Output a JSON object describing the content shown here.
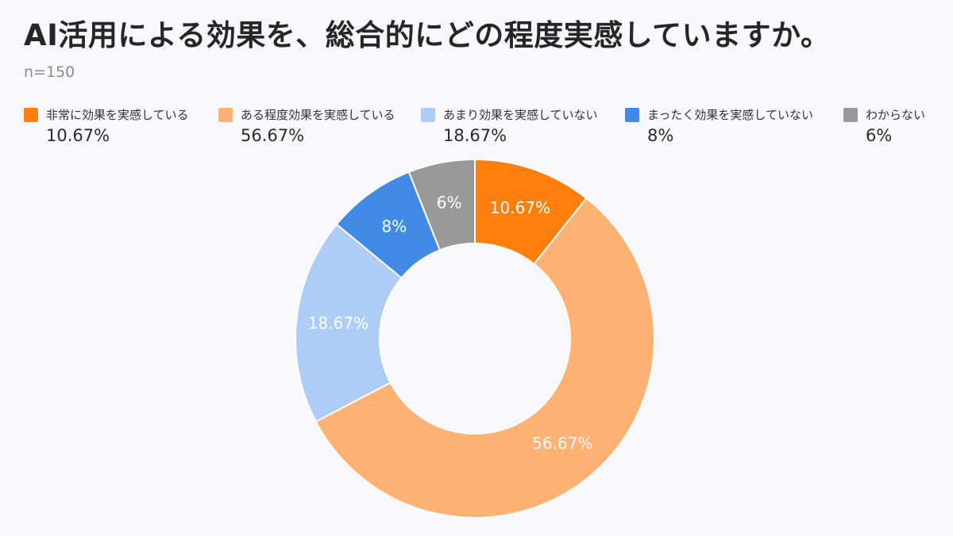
{
  "title": "AI活用による効果を、総合的にどの程度実感していますか。",
  "subtitle": "n=150",
  "chart_data": {
    "type": "pie",
    "title": "AI活用による効果を、総合的にどの程度実感していますか。",
    "subtitle": "n=150",
    "donut": true,
    "legend_position": "top",
    "categories": [
      "非常に効果を実感している",
      "ある程度効果を実感している",
      "あまり効果を実感していない",
      "まったく効果を実感していない",
      "わからない"
    ],
    "values": [
      10.67,
      56.67,
      18.67,
      8,
      6
    ],
    "value_labels": [
      "10.67%",
      "56.67%",
      "18.67%",
      "8%",
      "6%"
    ],
    "colors": [
      "#ff7f0e",
      "#fdb173",
      "#aecdf6",
      "#418be6",
      "#999999"
    ]
  }
}
